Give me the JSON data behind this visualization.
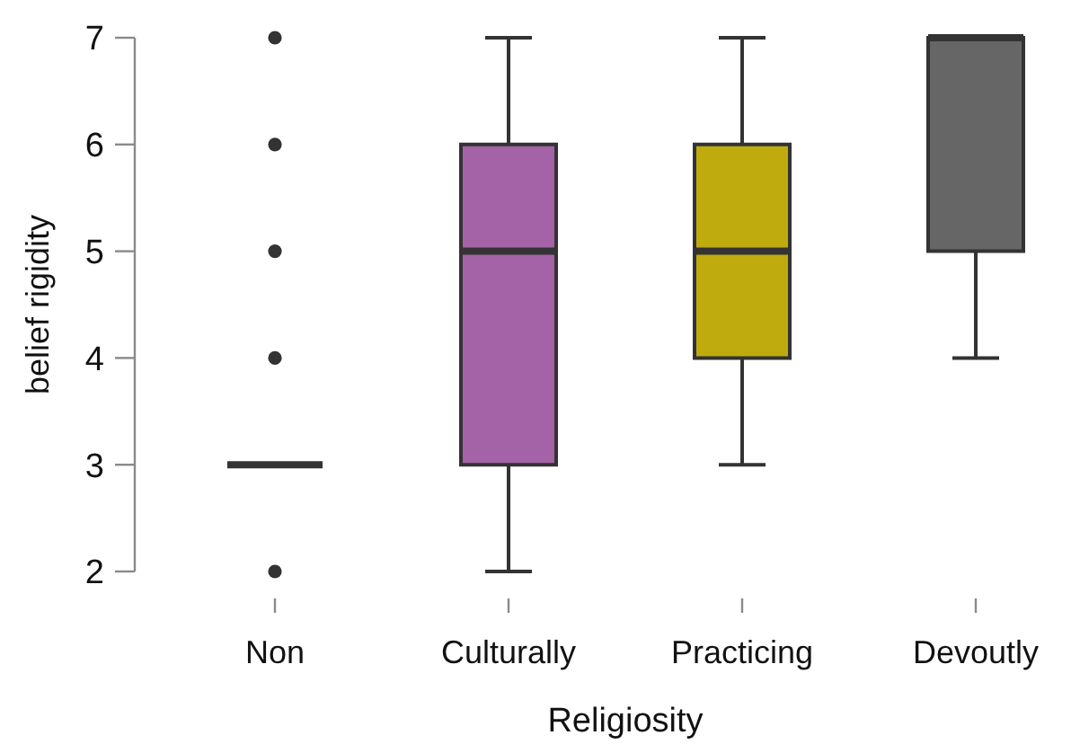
{
  "chart_data": {
    "type": "box",
    "xlabel": "Religiosity",
    "ylabel": "belief rigidity",
    "categories": [
      "Non",
      "Culturally",
      "Practicing",
      "Devoutly"
    ],
    "boxes": [
      {
        "low": 3,
        "q1": 3,
        "median": 3,
        "q3": 3,
        "high": 3,
        "outliers": [
          2,
          4,
          5,
          6,
          7
        ]
      },
      {
        "low": 2,
        "q1": 3,
        "median": 5,
        "q3": 6,
        "high": 7
      },
      {
        "low": 3,
        "q1": 4,
        "median": 5,
        "q3": 6,
        "high": 7
      },
      {
        "low": 4,
        "q1": 5,
        "median": 7,
        "q3": 7,
        "high": 7
      }
    ],
    "colors": [
      "#333333",
      "#a463a6",
      "#bfab0d",
      "#666666"
    ],
    "ylim": [
      2,
      7
    ],
    "yticks": [
      2,
      3,
      4,
      5,
      6,
      7
    ]
  }
}
